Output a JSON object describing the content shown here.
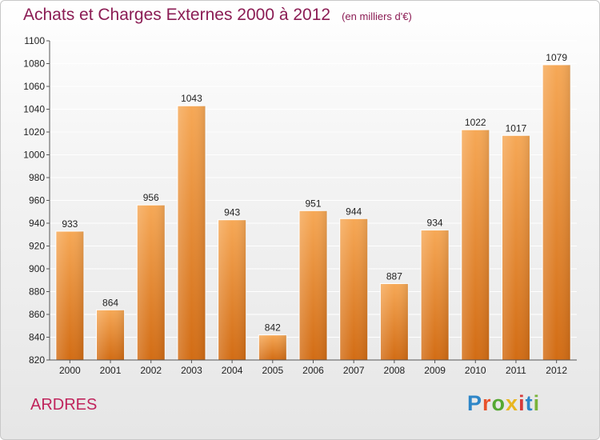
{
  "title": "Achats et Charges Externes 2000 à 2012",
  "subtitle": "(en milliers d'€)",
  "place": "ARDRES",
  "logo": {
    "letters": [
      "P",
      "r",
      "o",
      "x",
      "i",
      "t",
      "i"
    ],
    "colors": [
      "#2e86c8",
      "#e8522b",
      "#55a832",
      "#e8b620",
      "#d63a3a",
      "#2e86c8",
      "#7ab33a"
    ]
  },
  "colors": {
    "title": "#8b1c54",
    "bar_top": "#f6a856",
    "bar_bottom": "#d26c14",
    "axis": "#555555",
    "grid": "#ffffff"
  },
  "chart_data": {
    "type": "bar",
    "title": "Achats et Charges Externes 2000 à 2012",
    "subtitle": "(en milliers d'€)",
    "categories": [
      "2000",
      "2001",
      "2002",
      "2003",
      "2004",
      "2005",
      "2006",
      "2007",
      "2008",
      "2009",
      "2010",
      "2011",
      "2012"
    ],
    "values": [
      933,
      864,
      956,
      1043,
      943,
      842,
      951,
      944,
      887,
      934,
      1022,
      1017,
      1079
    ],
    "ylim": [
      820,
      1100
    ],
    "yticks": [
      820,
      840,
      860,
      880,
      900,
      920,
      940,
      960,
      980,
      1000,
      1020,
      1040,
      1060,
      1080,
      1100
    ],
    "grid": true,
    "legend": "none"
  }
}
